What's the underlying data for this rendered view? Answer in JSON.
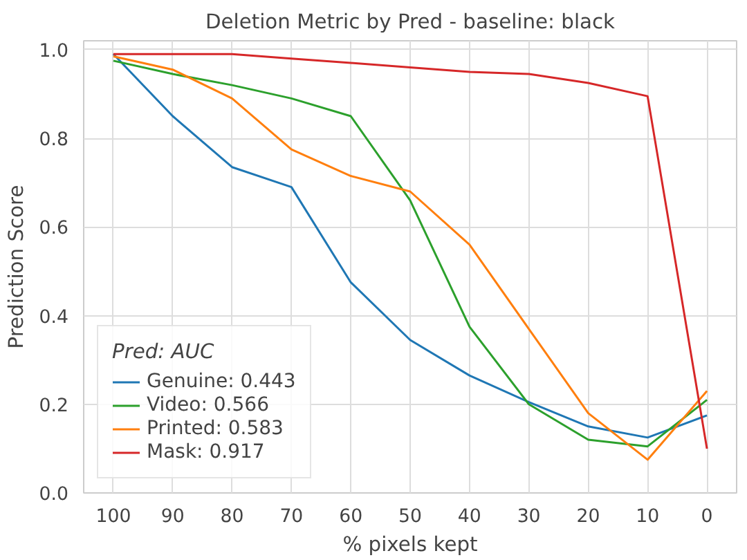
{
  "chart_data": {
    "type": "line",
    "title": "Deletion Metric by Pred - baseline: black",
    "xlabel": "% pixels kept",
    "ylabel": "Prediction Score",
    "legend_title": "Pred: AUC",
    "x": [
      100,
      90,
      80,
      70,
      60,
      50,
      40,
      30,
      20,
      10,
      0
    ],
    "xlim": [
      105,
      -5
    ],
    "xticks": [
      100,
      90,
      80,
      70,
      60,
      50,
      40,
      30,
      20,
      10,
      0
    ],
    "ylim": [
      0,
      1.02
    ],
    "yticks": [
      {
        "value": 0,
        "label": "0.0"
      },
      {
        "value": 0.2,
        "label": "0.2"
      },
      {
        "value": 0.4,
        "label": "0.4"
      },
      {
        "value": 0.6,
        "label": "0.6"
      },
      {
        "value": 0.8,
        "label": "0.8"
      },
      {
        "value": 1,
        "label": "1.0"
      }
    ],
    "grid": true,
    "legend": "bottom left",
    "marker": "none",
    "line_style": "solid",
    "series": [
      {
        "name": "Genuine: 0.443",
        "color": "#1f77b4",
        "values": [
          0.99,
          0.85,
          0.735,
          0.69,
          0.475,
          0.345,
          0.265,
          0.205,
          0.15,
          0.125,
          0.175
        ]
      },
      {
        "name": "Video: 0.566",
        "color": "#2ca02c",
        "values": [
          0.975,
          0.945,
          0.92,
          0.89,
          0.85,
          0.66,
          0.375,
          0.2,
          0.12,
          0.105,
          0.21
        ]
      },
      {
        "name": "Printed: 0.583",
        "color": "#ff7f0e",
        "values": [
          0.985,
          0.955,
          0.89,
          0.775,
          0.715,
          0.68,
          0.56,
          0.37,
          0.18,
          0.075,
          0.23
        ]
      },
      {
        "name": "Mask: 0.917",
        "color": "#d62728",
        "values": [
          0.99,
          0.99,
          0.99,
          0.98,
          0.97,
          0.96,
          0.95,
          0.945,
          0.925,
          0.895,
          0.1
        ]
      }
    ]
  }
}
